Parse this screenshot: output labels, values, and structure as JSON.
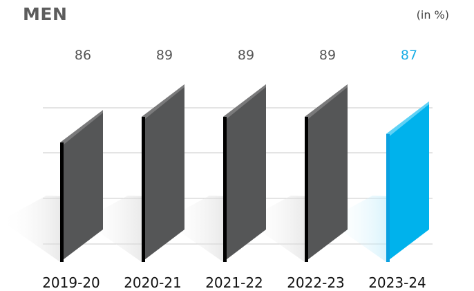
{
  "chart_data": {
    "type": "bar",
    "title": "MEN",
    "unit": "(in %)",
    "categories": [
      "2019-20",
      "2020-21",
      "2021-22",
      "2022-23",
      "2023-24"
    ],
    "values": [
      86,
      89,
      89,
      89,
      87
    ],
    "highlight_index": 4,
    "colors": {
      "bar": "#555657",
      "bar_top": "#7a7a7b",
      "bar_edge": "#000000",
      "highlight": "#00b2ec",
      "highlight_top": "#5fd2f6",
      "highlight_edge": "#0aa0e0",
      "value_label": "#555555",
      "value_label_highlight": "#1aaee5",
      "grid": "#c8c8c8"
    },
    "grid": true
  }
}
